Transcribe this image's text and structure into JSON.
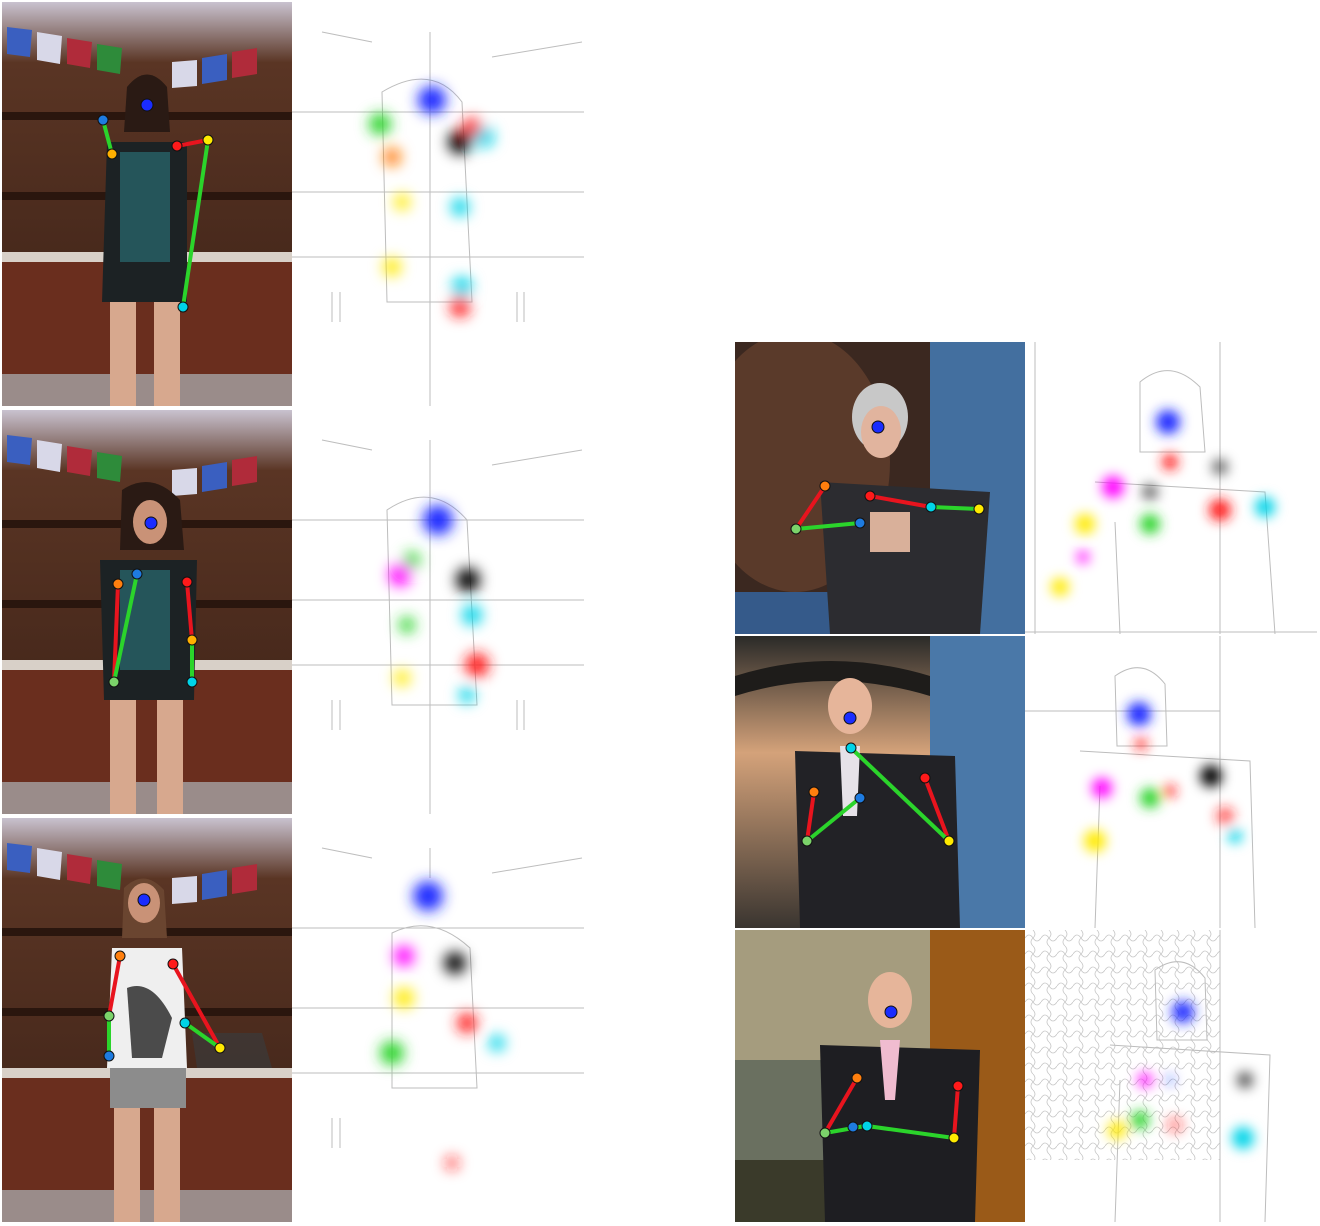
{
  "figure": {
    "background": "#ffffff",
    "left_column": {
      "rows": [
        {
          "photo_label": "",
          "heatmap_label": ""
        },
        {
          "photo_label": "",
          "heatmap_label": ""
        },
        {
          "photo_label": "",
          "heatmap_label": ""
        }
      ]
    },
    "right_column": {
      "rows": [
        {
          "photo_label": "",
          "heatmap_label": ""
        },
        {
          "photo_label": "",
          "heatmap_label": ""
        },
        {
          "photo_label": "",
          "heatmap_label": ""
        }
      ]
    },
    "joint_colors": {
      "head": "#1a2cff",
      "shoulder_left": "#ff7f0e",
      "shoulder_right": "#ff1a1a",
      "elbow": "#00d4e8",
      "wrist_left": "#7bd36a",
      "wrist_right": "#ffea00",
      "hand": "#ff00ff",
      "neck": "#000000",
      "limb_upper": "#e8141e",
      "limb_lower": "#2bd42b"
    }
  }
}
